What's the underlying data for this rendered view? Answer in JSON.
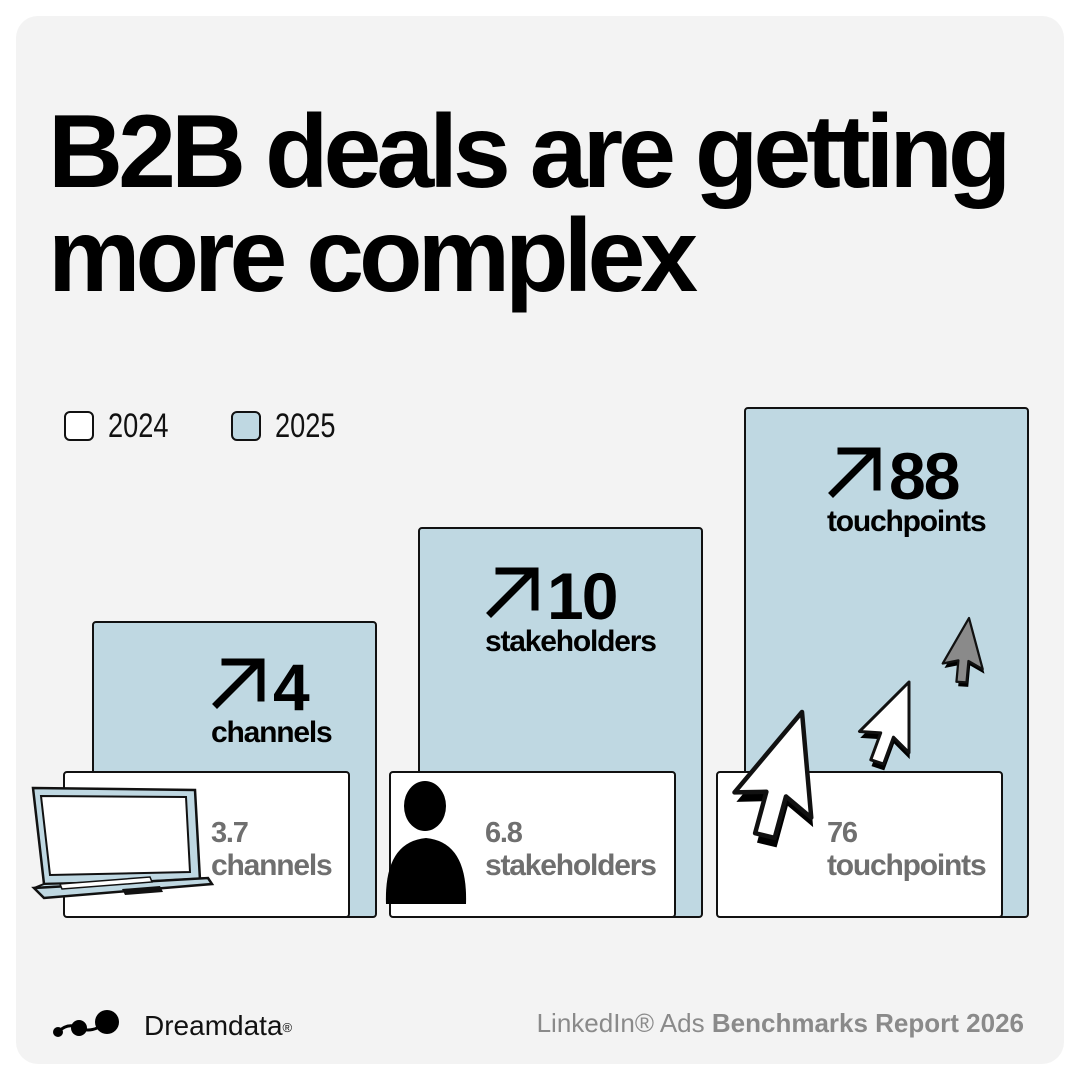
{
  "title": {
    "line1": "B2B deals are getting",
    "line2": "more complex"
  },
  "chart_data": {
    "type": "bar",
    "categories": [
      "channels",
      "stakeholders",
      "touchpoints"
    ],
    "series": [
      {
        "name": "2024",
        "values": [
          3.7,
          6.8,
          76
        ]
      },
      {
        "name": "2025",
        "values": [
          4,
          10,
          88
        ]
      }
    ],
    "legend_position": "top-left",
    "colors": {
      "2024": "#ffffff",
      "2025": "#bfd8e2"
    },
    "labels": {
      "2024": [
        {
          "value": "3.7",
          "unit": "channels"
        },
        {
          "value": "6.8",
          "unit": "stakeholders"
        },
        {
          "value": "76",
          "unit": "touchpoints"
        }
      ],
      "2025": [
        {
          "value": "4",
          "unit": "channels"
        },
        {
          "value": "10",
          "unit": "stakeholders"
        },
        {
          "value": "88",
          "unit": "touchpoints"
        }
      ]
    },
    "icons": [
      "laptop-icon",
      "person-icon",
      "cursor-arrows-icon"
    ],
    "trend_icon": "arrow-up-right-icon"
  },
  "footer": {
    "brand": "Dreamdata",
    "brand_mark": "®",
    "report_prefix": "LinkedIn® Ads ",
    "report_bold": "Benchmarks Report 2026"
  }
}
